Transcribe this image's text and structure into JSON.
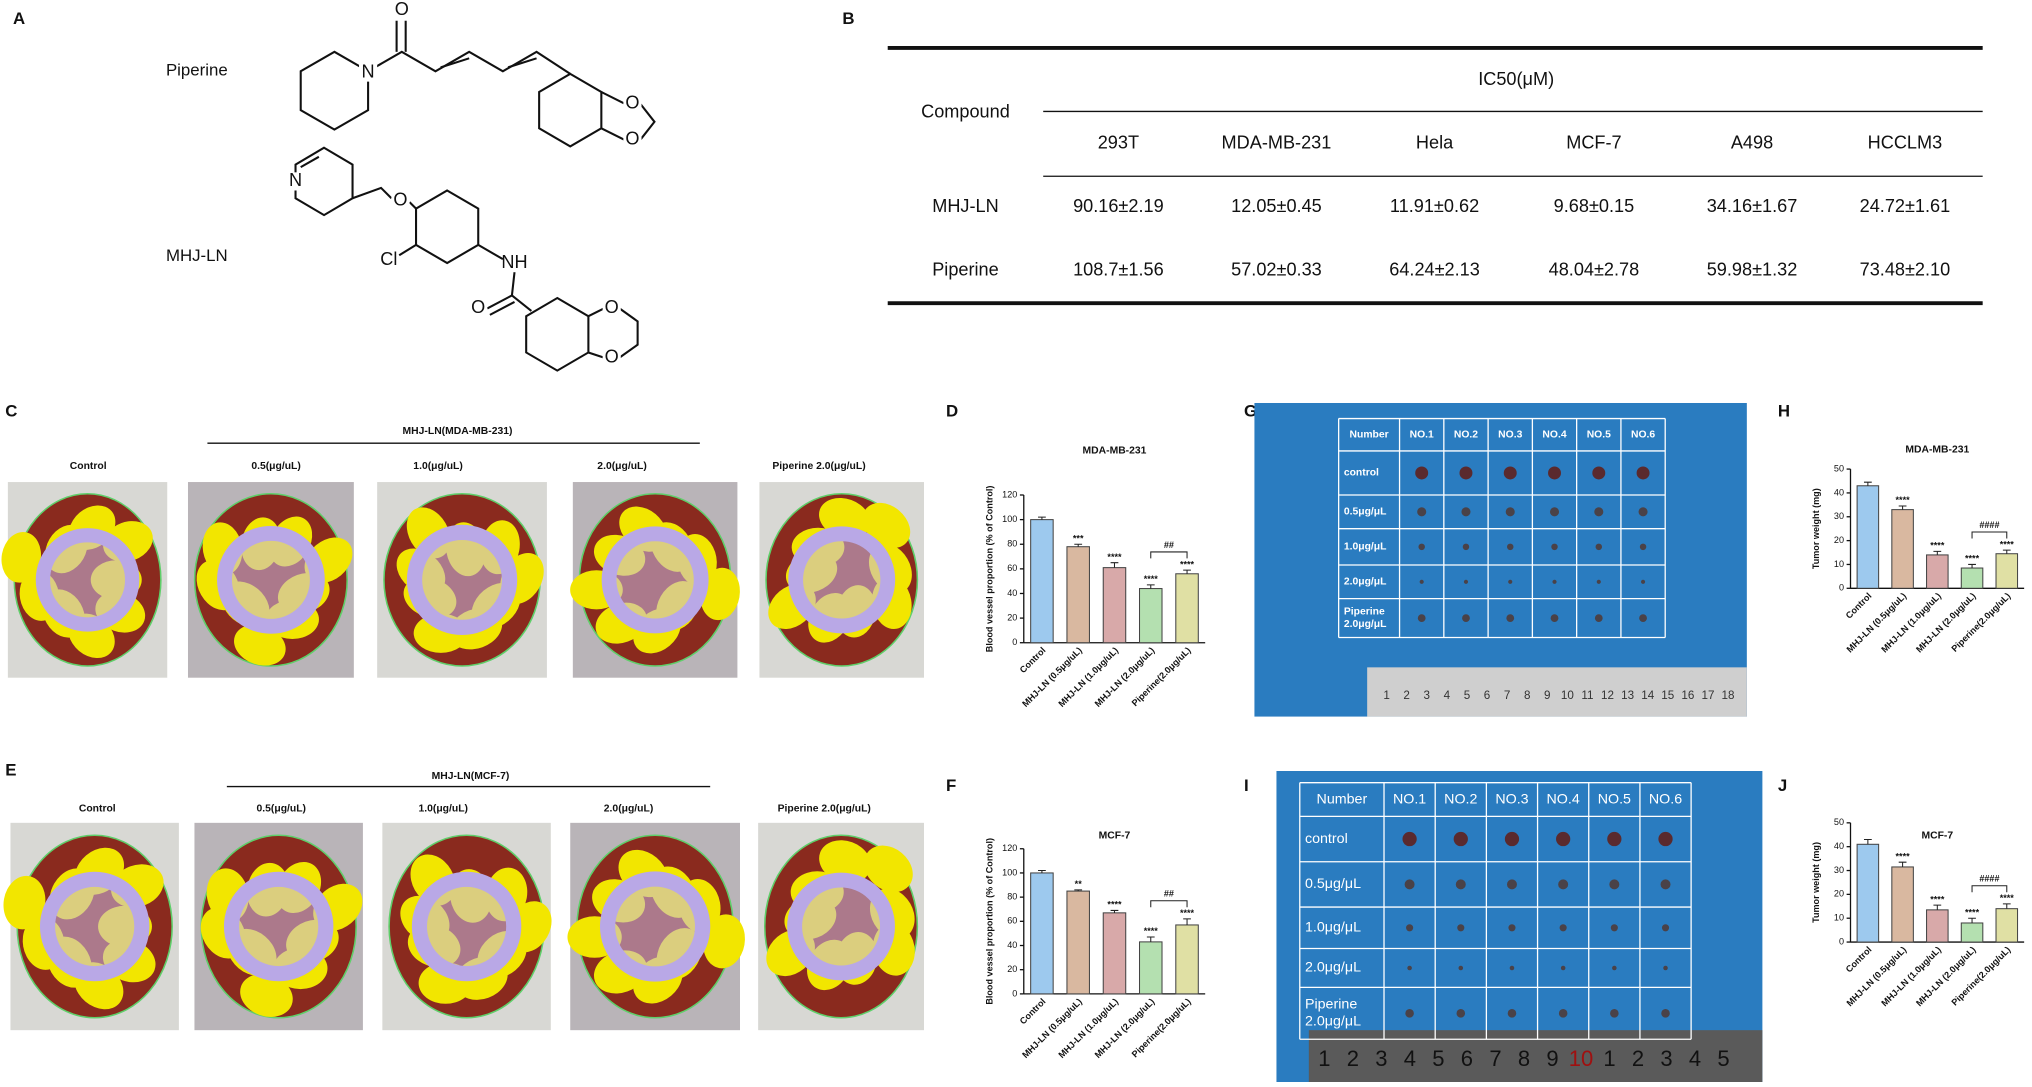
{
  "panel_labels": [
    "A",
    "B",
    "C",
    "D",
    "E",
    "F",
    "G",
    "H",
    "I",
    "J"
  ],
  "structures": [
    {
      "name": "Piperine",
      "atoms": [
        "O",
        "N",
        "O",
        "O"
      ]
    },
    {
      "name": "MHJ-LN",
      "atoms": [
        "N",
        "O",
        "Cl",
        "NH",
        "O",
        "O",
        "O"
      ]
    }
  ],
  "table": {
    "row_header": "Compound",
    "group_header": "IC50(μM)",
    "columns": [
      "293T",
      "MDA-MB-231",
      "Hela",
      "MCF-7",
      "A498",
      "HCCLM3"
    ],
    "rows": [
      [
        "MHJ-LN",
        "90.16±2.19",
        "12.05±0.45",
        "11.91±0.62",
        "9.68±0.15",
        "34.16±1.67",
        "24.72±1.61"
      ],
      [
        "Piperine",
        "108.7±1.56",
        "57.02±0.33",
        "64.24±2.13",
        "48.04±2.78",
        "59.98±1.32",
        "73.48±2.10"
      ]
    ]
  },
  "photo_panels": [
    {
      "heading": "MHJ-LN(MDA-MB-231)",
      "labels": [
        "Control",
        "0.5(μg/uL)",
        "1.0(μg/uL)",
        "2.0(μg/uL)",
        "Piperine 2.0(μg/uL)"
      ]
    },
    {
      "heading": "MHJ-LN(MCF-7)",
      "labels": [
        "Control",
        "0.5(μg/uL)",
        "1.0(μg/uL)",
        "2.0(μg/uL)",
        "Piperine 2.0(μg/uL)"
      ]
    }
  ],
  "tumor_grids": [
    {
      "header": [
        "Number",
        "NO.1",
        "NO.2",
        "NO.3",
        "NO.4",
        "NO.5",
        "NO.6"
      ],
      "row_labels": [
        [
          "control"
        ],
        [
          "0.5μg/μL"
        ],
        [
          "1.0μg/μL"
        ],
        [
          "2.0μg/μL"
        ],
        [
          "Piperine",
          "2.0μg/μL"
        ]
      ],
      "ruler": [
        "1",
        "2",
        "3",
        "4",
        "5",
        "6",
        "7",
        "8",
        "9",
        "10",
        "11",
        "12",
        "13",
        "14",
        "15",
        "16",
        "17",
        "18"
      ]
    },
    {
      "header": [
        "Number",
        "NO.1",
        "NO.2",
        "NO.3",
        "NO.4",
        "NO.5",
        "NO.6"
      ],
      "row_labels": [
        [
          "control"
        ],
        [
          "0.5μg/μL"
        ],
        [
          "1.0μg/μL"
        ],
        [
          "2.0μg/μL"
        ],
        [
          "Piperine",
          "2.0μg/μL"
        ]
      ],
      "ruler": [
        "1",
        "2",
        "3",
        "4",
        "5",
        "6",
        "7",
        "8",
        "9",
        "10",
        "1",
        "2",
        "3",
        "4",
        "5"
      ]
    }
  ],
  "chart_data": [
    {
      "type": "bar",
      "title": "MDA-MB-231",
      "y_label": "Blood vessel proportion (% of Control)",
      "categories": [
        "Control",
        "MHJ-LN (0.5μg/uL)",
        "MHJ-LN (1.0μg/uL)",
        "MHJ-LN (2.0μg/uL)",
        "Piperine(2.0μg/uL)"
      ],
      "values": [
        100,
        78,
        61,
        44,
        56
      ],
      "errors": [
        2,
        2,
        4,
        3,
        3
      ],
      "colors": [
        "#9dc9ee",
        "#d9b8a0",
        "#d8a9a9",
        "#b4e0b0",
        "#e0e0a4"
      ],
      "significance": [
        null,
        "***",
        "****",
        "****",
        "****"
      ],
      "bracket_label": "##",
      "ylim": [
        0,
        120
      ],
      "yticks": [
        0,
        20,
        40,
        60,
        80,
        100,
        120
      ]
    },
    {
      "type": "bar",
      "title": "MCF-7",
      "y_label": "Blood vessel proportion (% of Control)",
      "categories": [
        "Control",
        "MHJ-LN (0.5μg/uL)",
        "MHJ-LN (1.0μg/uL)",
        "MHJ-LN (2.0μg/uL)",
        "Piperine(2.0μg/uL)"
      ],
      "values": [
        100,
        85,
        67,
        43,
        57
      ],
      "errors": [
        2,
        1,
        2,
        4,
        5
      ],
      "colors": [
        "#9dc9ee",
        "#d9b8a0",
        "#d8a9a9",
        "#b4e0b0",
        "#e0e0a4"
      ],
      "significance": [
        null,
        "**",
        "****",
        "****",
        "****"
      ],
      "bracket_label": "##",
      "ylim": [
        0,
        120
      ],
      "yticks": [
        0,
        20,
        40,
        60,
        80,
        100,
        120
      ]
    },
    {
      "type": "bar",
      "title": "MDA-MB-231",
      "y_label": "Tumor weight (mg)",
      "categories": [
        "Control",
        "MHJ-LN (0.5μg/uL)",
        "MHJ-LN (1.0μg/uL)",
        "MHJ-LN (2.0μg/uL)",
        "Piperine(2.0μg/uL)"
      ],
      "values": [
        43,
        33,
        14,
        8.5,
        14.5
      ],
      "errors": [
        1.5,
        1.5,
        1.5,
        1.5,
        1.5
      ],
      "colors": [
        "#9dc9ee",
        "#d9b8a0",
        "#d8a9a9",
        "#b4e0b0",
        "#e0e0a4"
      ],
      "significance": [
        null,
        "****",
        "****",
        "****",
        "****"
      ],
      "bracket_label": "####",
      "ylim": [
        0,
        50
      ],
      "yticks": [
        0,
        10,
        20,
        30,
        40,
        50
      ]
    },
    {
      "type": "bar",
      "title": "MCF-7",
      "y_label": "Tumor weight (mg)",
      "categories": [
        "Control",
        "MHJ-LN (0.5μg/uL)",
        "MHJ-LN (1.0μg/uL)",
        "MHJ-LN (2.0μg/uL)",
        "Piperine(2.0μg/uL)"
      ],
      "values": [
        41,
        31.5,
        13.5,
        8,
        14
      ],
      "errors": [
        2,
        2,
        2,
        2,
        2
      ],
      "colors": [
        "#9dc9ee",
        "#d9b8a0",
        "#d8a9a9",
        "#b4e0b0",
        "#e0e0a4"
      ],
      "significance": [
        null,
        "****",
        "****",
        "****",
        "****"
      ],
      "bracket_label": "####",
      "ylim": [
        0,
        50
      ],
      "yticks": [
        0,
        10,
        20,
        30,
        40,
        50
      ]
    }
  ]
}
